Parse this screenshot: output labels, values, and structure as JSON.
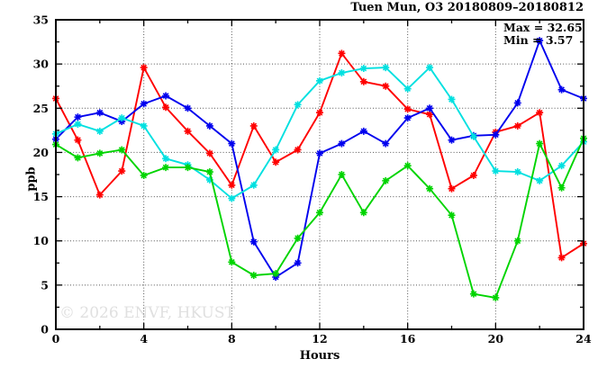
{
  "chart_data": {
    "type": "line",
    "title": "Tuen Mun, O3 20180809–20180812",
    "xlabel": "Hours",
    "ylabel": "ppb",
    "watermark": "© 2026 ENVF, HKUST",
    "annotations": {
      "max": "Max = 32.65",
      "min": "Min = 3.57"
    },
    "max_value": 32.65,
    "min_value": 3.57,
    "xlim": [
      0,
      24
    ],
    "ylim": [
      0,
      35
    ],
    "x_major_ticks": [
      0,
      4,
      8,
      12,
      16,
      20,
      24
    ],
    "x_minor_ticks": [
      2,
      6,
      10,
      14,
      18,
      22
    ],
    "y_major_ticks": [
      0,
      5,
      10,
      15,
      20,
      25,
      30,
      35
    ],
    "y_minor_ticks": [
      2.5,
      7.5,
      12.5,
      17.5,
      22.5,
      27.5,
      32.5
    ],
    "grid_x": [
      4,
      8,
      12,
      16,
      20
    ],
    "grid_y": [
      5,
      10,
      15,
      20,
      25,
      30
    ],
    "grid_color": "#555555",
    "x": [
      0,
      1,
      2,
      3,
      4,
      5,
      6,
      7,
      8,
      9,
      10,
      11,
      12,
      13,
      14,
      15,
      16,
      17,
      18,
      19,
      20,
      21,
      22,
      23,
      24
    ],
    "series": [
      {
        "name": "red-line",
        "color": "#ff0000",
        "values": [
          26.1,
          21.4,
          15.2,
          17.9,
          29.6,
          25.1,
          22.4,
          19.9,
          16.3,
          23.0,
          18.9,
          20.3,
          24.5,
          31.2,
          28.0,
          27.5,
          24.9,
          24.3,
          15.9,
          17.4,
          22.3,
          23.0,
          24.5,
          8.1,
          9.7
        ]
      },
      {
        "name": "blue-line",
        "color": "#0000ee",
        "values": [
          21.5,
          24.0,
          24.5,
          23.5,
          25.5,
          26.4,
          25.0,
          23.0,
          21.0,
          9.9,
          5.9,
          7.5,
          19.9,
          21.0,
          22.4,
          21.0,
          23.9,
          25.0,
          21.4,
          21.9,
          22.0,
          25.6,
          32.65,
          27.1,
          26.1
        ]
      },
      {
        "name": "cyan-line",
        "color": "#00e0e0",
        "values": [
          22.1,
          23.2,
          22.4,
          23.9,
          23.0,
          19.3,
          18.6,
          16.9,
          14.8,
          16.3,
          20.3,
          25.4,
          28.1,
          29.0,
          29.5,
          29.6,
          27.2,
          29.6,
          26.0,
          21.8,
          17.9,
          17.8,
          16.8,
          18.5,
          21.2
        ]
      },
      {
        "name": "green-line",
        "color": "#00d400",
        "values": [
          20.9,
          19.4,
          19.9,
          20.3,
          17.4,
          18.3,
          18.3,
          17.8,
          7.6,
          6.1,
          6.3,
          10.3,
          13.2,
          17.5,
          13.2,
          16.8,
          18.5,
          15.9,
          12.9,
          4.0,
          3.57,
          10.0,
          21.0,
          16.0,
          21.6
        ]
      }
    ],
    "legend": "none"
  }
}
